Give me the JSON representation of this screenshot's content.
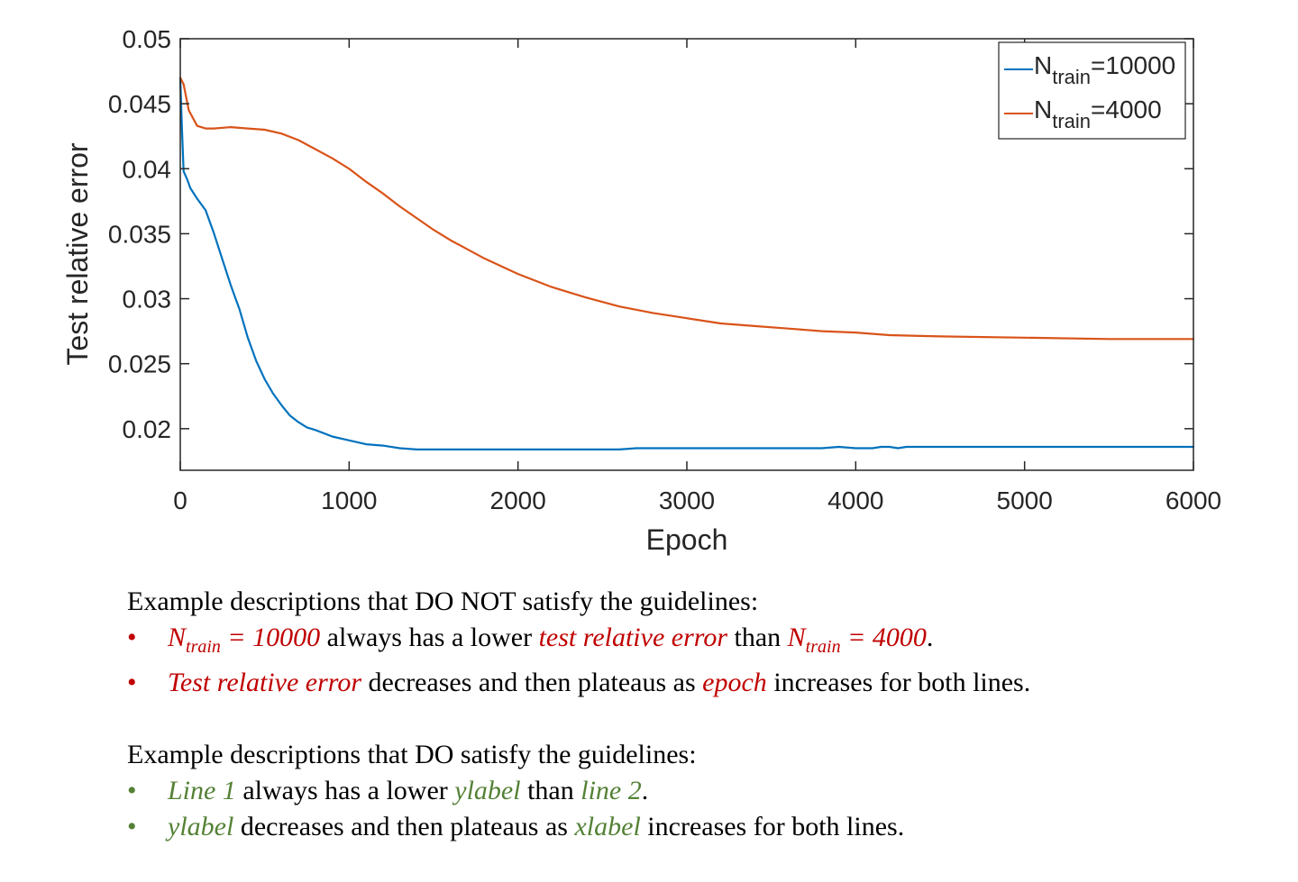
{
  "chart_data": {
    "type": "line",
    "title": "",
    "xlabel": "Epoch",
    "ylabel": "Test relative error",
    "xlim": [
      0,
      6000
    ],
    "ylim": [
      0.0168,
      0.05
    ],
    "xticks": [
      0,
      1000,
      2000,
      3000,
      4000,
      5000,
      6000
    ],
    "xtick_labels": [
      "0",
      "1000",
      "2000",
      "3000",
      "4000",
      "5000",
      "6000"
    ],
    "yticks": [
      0.02,
      0.025,
      0.03,
      0.035,
      0.04,
      0.045,
      0.05
    ],
    "ytick_labels": [
      "0.02",
      "0.025",
      "0.03",
      "0.035",
      "0.04",
      "0.045",
      "0.05"
    ],
    "legend_position": "top-right",
    "grid": false,
    "series": [
      {
        "name": "N_train=10000",
        "legend_main": "N",
        "legend_sub": "train",
        "legend_suffix": "=10000",
        "color": "#0072bd",
        "x": [
          0,
          10,
          20,
          40,
          60,
          100,
          150,
          200,
          250,
          300,
          350,
          400,
          450,
          500,
          550,
          600,
          650,
          700,
          750,
          800,
          900,
          1000,
          1100,
          1200,
          1300,
          1400,
          1600,
          2000,
          2600,
          2700,
          3000,
          3800,
          3900,
          4000,
          4100,
          4150,
          4200,
          4250,
          4300,
          5000,
          6000
        ],
        "y": [
          0.047,
          0.043,
          0.0398,
          0.0392,
          0.0385,
          0.0377,
          0.0368,
          0.035,
          0.033,
          0.031,
          0.0292,
          0.027,
          0.0252,
          0.0238,
          0.0227,
          0.0218,
          0.021,
          0.0205,
          0.0201,
          0.0199,
          0.0194,
          0.0191,
          0.0188,
          0.0187,
          0.0185,
          0.0184,
          0.0184,
          0.0184,
          0.0184,
          0.0185,
          0.0185,
          0.0185,
          0.0186,
          0.0185,
          0.0185,
          0.0186,
          0.0186,
          0.0185,
          0.0186,
          0.0186,
          0.0186
        ]
      },
      {
        "name": "N_train=4000",
        "legend_main": "N",
        "legend_sub": "train",
        "legend_suffix": "=4000",
        "color": "#d95319",
        "x": [
          0,
          20,
          50,
          100,
          150,
          200,
          300,
          400,
          500,
          600,
          700,
          800,
          900,
          1000,
          1100,
          1200,
          1300,
          1400,
          1500,
          1600,
          1700,
          1800,
          2000,
          2200,
          2400,
          2600,
          2800,
          3000,
          3200,
          3400,
          3600,
          3800,
          4000,
          4200,
          4500,
          5000,
          5500,
          6000
        ],
        "y": [
          0.047,
          0.0465,
          0.0445,
          0.0433,
          0.0431,
          0.0431,
          0.0432,
          0.0431,
          0.043,
          0.0427,
          0.0422,
          0.0415,
          0.0408,
          0.04,
          0.039,
          0.0381,
          0.0371,
          0.0362,
          0.0353,
          0.0345,
          0.0338,
          0.0331,
          0.0319,
          0.0309,
          0.0301,
          0.0294,
          0.0289,
          0.0285,
          0.0281,
          0.0279,
          0.0277,
          0.0275,
          0.0274,
          0.0272,
          0.0271,
          0.027,
          0.0269,
          0.0269
        ]
      }
    ]
  },
  "notes": {
    "bad_heading": "Example descriptions that DO NOT satisfy the guidelines:",
    "bad1": {
      "bullet": "•",
      "a_main": "N",
      "a_sub": "train",
      "a_rest": " = 10000",
      "b": " always has a lower ",
      "c": "test relative error",
      "d": " than ",
      "e_main": "N",
      "e_sub": "train",
      "e_rest": " = 4000",
      "f": "."
    },
    "bad2": {
      "bullet": "•",
      "a": "Test relative error",
      "b": " decreases and then plateaus as ",
      "c": "epoch",
      "d": " increases for both lines."
    },
    "good_heading": "Example descriptions that DO satisfy the guidelines:",
    "good1": {
      "bullet": "•",
      "a": "Line 1",
      "b": " always has a lower ",
      "c": "ylabel",
      "d": " than ",
      "e": "line 2",
      "f": "."
    },
    "good2": {
      "bullet": "•",
      "a": "ylabel",
      "b": " decreases and then plateaus as ",
      "c": "xlabel",
      "d": " increases for both lines."
    }
  }
}
